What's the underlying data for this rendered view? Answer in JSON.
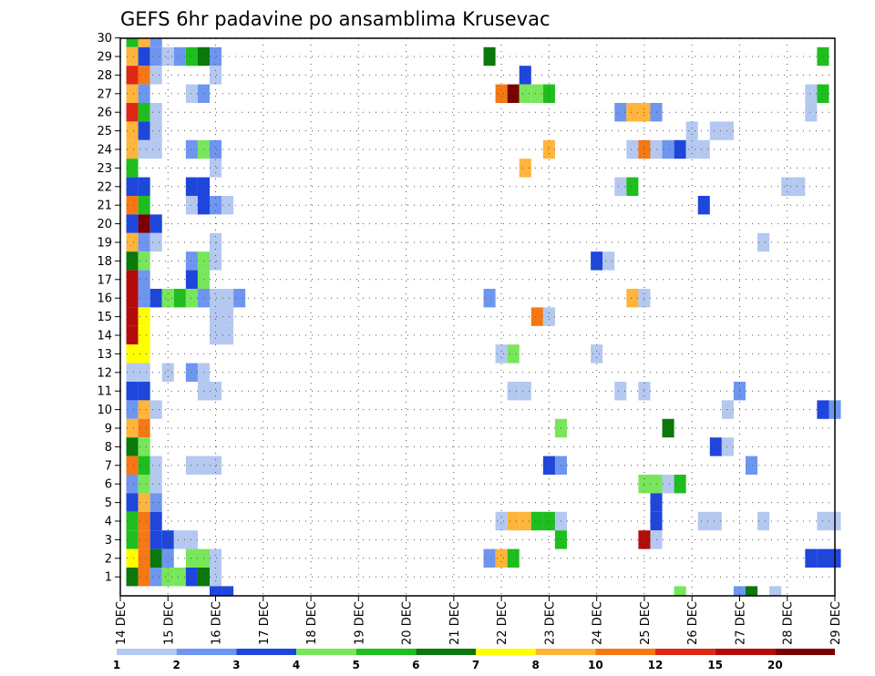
{
  "chart_data": {
    "type": "heatmap",
    "title": "GEFS 6hr padavine po ansamblima Krusevac",
    "xlabel": "",
    "ylabel": "",
    "x_ticks": [
      "14 DEC",
      "15 DEC",
      "16 DEC",
      "17 DEC",
      "18 DEC",
      "19 DEC",
      "20 DEC",
      "21 DEC",
      "22 DEC",
      "23 DEC",
      "24 DEC",
      "25 DEC",
      "26 DEC",
      "27 DEC",
      "28 DEC",
      "29 DEC"
    ],
    "y_ticks": [
      "1",
      "2",
      "3",
      "4",
      "5",
      "6",
      "7",
      "8",
      "9",
      "10",
      "11",
      "12",
      "13",
      "14",
      "15",
      "16",
      "17",
      "18",
      "19",
      "20",
      "21",
      "22",
      "23",
      "24",
      "25",
      "26",
      "27",
      "28",
      "29",
      "30"
    ],
    "xlim": [
      0,
      60
    ],
    "ylim": [
      0,
      30
    ],
    "x_unit": "6-hour step from 14 DEC 00Z",
    "grid": true,
    "legend": {
      "placement": "bottom",
      "colors": [
        "#b4c8f0",
        "#6e96f0",
        "#1e46dc",
        "#78e65a",
        "#1ebe1e",
        "#0a780a",
        "#ffff00",
        "#ffb43c",
        "#f57814",
        "#dc2814",
        "#b40a0a",
        "#780000"
      ],
      "labels": [
        "1",
        "2",
        "3",
        "4",
        "5",
        "6",
        "7",
        "8",
        "10",
        "12",
        "15",
        "20"
      ]
    },
    "cells": [
      {
        "x": 1,
        "y": 29,
        "v": 5
      },
      {
        "x": 2,
        "y": 29,
        "v": 8
      },
      {
        "x": 3,
        "y": 29,
        "v": 2
      },
      {
        "x": 1,
        "y": 28,
        "v": 8
      },
      {
        "x": 2,
        "y": 28,
        "v": 3
      },
      {
        "x": 3,
        "y": 28,
        "v": 2
      },
      {
        "x": 4,
        "y": 28,
        "v": 1
      },
      {
        "x": 5,
        "y": 28,
        "v": 2
      },
      {
        "x": 6,
        "y": 28,
        "v": 5
      },
      {
        "x": 7,
        "y": 28,
        "v": 6
      },
      {
        "x": 8,
        "y": 28,
        "v": 2
      },
      {
        "x": 31,
        "y": 28,
        "v": 6
      },
      {
        "x": 59,
        "y": 28,
        "v": 5
      },
      {
        "x": 1,
        "y": 27,
        "v": 12
      },
      {
        "x": 2,
        "y": 27,
        "v": 10
      },
      {
        "x": 3,
        "y": 27,
        "v": 1
      },
      {
        "x": 8,
        "y": 27,
        "v": 1
      },
      {
        "x": 34,
        "y": 27,
        "v": 3
      },
      {
        "x": 1,
        "y": 26,
        "v": 8
      },
      {
        "x": 2,
        "y": 26,
        "v": 2
      },
      {
        "x": 6,
        "y": 26,
        "v": 1
      },
      {
        "x": 7,
        "y": 26,
        "v": 2
      },
      {
        "x": 32,
        "y": 26,
        "v": 10
      },
      {
        "x": 33,
        "y": 26,
        "v": 20
      },
      {
        "x": 34,
        "y": 26,
        "v": 4
      },
      {
        "x": 35,
        "y": 26,
        "v": 4
      },
      {
        "x": 36,
        "y": 26,
        "v": 5
      },
      {
        "x": 59,
        "y": 26,
        "v": 5
      },
      {
        "x": 58,
        "y": 26,
        "v": 1
      },
      {
        "x": 1,
        "y": 25,
        "v": 12
      },
      {
        "x": 2,
        "y": 25,
        "v": 5
      },
      {
        "x": 3,
        "y": 25,
        "v": 1
      },
      {
        "x": 42,
        "y": 25,
        "v": 2
      },
      {
        "x": 43,
        "y": 25,
        "v": 8
      },
      {
        "x": 44,
        "y": 25,
        "v": 8
      },
      {
        "x": 45,
        "y": 25,
        "v": 2
      },
      {
        "x": 58,
        "y": 25,
        "v": 1
      },
      {
        "x": 1,
        "y": 24,
        "v": 8
      },
      {
        "x": 2,
        "y": 24,
        "v": 3
      },
      {
        "x": 3,
        "y": 24,
        "v": 1
      },
      {
        "x": 48,
        "y": 24,
        "v": 1
      },
      {
        "x": 50,
        "y": 24,
        "v": 1
      },
      {
        "x": 51,
        "y": 24,
        "v": 1
      },
      {
        "x": 1,
        "y": 23,
        "v": 8
      },
      {
        "x": 2,
        "y": 23,
        "v": 1
      },
      {
        "x": 3,
        "y": 23,
        "v": 1
      },
      {
        "x": 6,
        "y": 23,
        "v": 2
      },
      {
        "x": 7,
        "y": 23,
        "v": 4
      },
      {
        "x": 8,
        "y": 23,
        "v": 2
      },
      {
        "x": 36,
        "y": 23,
        "v": 8
      },
      {
        "x": 43,
        "y": 23,
        "v": 1
      },
      {
        "x": 44,
        "y": 23,
        "v": 10
      },
      {
        "x": 45,
        "y": 23,
        "v": 1
      },
      {
        "x": 46,
        "y": 23,
        "v": 2
      },
      {
        "x": 47,
        "y": 23,
        "v": 3
      },
      {
        "x": 48,
        "y": 23,
        "v": 1
      },
      {
        "x": 49,
        "y": 23,
        "v": 1
      },
      {
        "x": 1,
        "y": 22,
        "v": 5
      },
      {
        "x": 8,
        "y": 22,
        "v": 1
      },
      {
        "x": 34,
        "y": 22,
        "v": 8
      },
      {
        "x": 1,
        "y": 21,
        "v": 3
      },
      {
        "x": 2,
        "y": 21,
        "v": 3
      },
      {
        "x": 6,
        "y": 21,
        "v": 3
      },
      {
        "x": 7,
        "y": 21,
        "v": 3
      },
      {
        "x": 42,
        "y": 21,
        "v": 1
      },
      {
        "x": 43,
        "y": 21,
        "v": 5
      },
      {
        "x": 56,
        "y": 21,
        "v": 1
      },
      {
        "x": 57,
        "y": 21,
        "v": 1
      },
      {
        "x": 1,
        "y": 20,
        "v": 10
      },
      {
        "x": 2,
        "y": 20,
        "v": 5
      },
      {
        "x": 6,
        "y": 20,
        "v": 1
      },
      {
        "x": 7,
        "y": 20,
        "v": 3
      },
      {
        "x": 8,
        "y": 20,
        "v": 2
      },
      {
        "x": 9,
        "y": 20,
        "v": 1
      },
      {
        "x": 49,
        "y": 20,
        "v": 3
      },
      {
        "x": 1,
        "y": 19,
        "v": 3
      },
      {
        "x": 2,
        "y": 19,
        "v": 20
      },
      {
        "x": 3,
        "y": 19,
        "v": 3
      },
      {
        "x": 1,
        "y": 18,
        "v": 8
      },
      {
        "x": 2,
        "y": 18,
        "v": 2
      },
      {
        "x": 3,
        "y": 18,
        "v": 1
      },
      {
        "x": 8,
        "y": 18,
        "v": 1
      },
      {
        "x": 54,
        "y": 18,
        "v": 1
      },
      {
        "x": 1,
        "y": 17,
        "v": 6
      },
      {
        "x": 2,
        "y": 17,
        "v": 4
      },
      {
        "x": 6,
        "y": 17,
        "v": 2
      },
      {
        "x": 7,
        "y": 17,
        "v": 4
      },
      {
        "x": 8,
        "y": 17,
        "v": 1
      },
      {
        "x": 40,
        "y": 17,
        "v": 3
      },
      {
        "x": 41,
        "y": 17,
        "v": 1
      },
      {
        "x": 1,
        "y": 16,
        "v": 15
      },
      {
        "x": 2,
        "y": 16,
        "v": 2
      },
      {
        "x": 6,
        "y": 16,
        "v": 3
      },
      {
        "x": 7,
        "y": 16,
        "v": 4
      },
      {
        "x": 1,
        "y": 15,
        "v": 15
      },
      {
        "x": 2,
        "y": 15,
        "v": 2
      },
      {
        "x": 3,
        "y": 15,
        "v": 3
      },
      {
        "x": 4,
        "y": 15,
        "v": 4
      },
      {
        "x": 5,
        "y": 15,
        "v": 5
      },
      {
        "x": 6,
        "y": 15,
        "v": 4
      },
      {
        "x": 7,
        "y": 15,
        "v": 2
      },
      {
        "x": 8,
        "y": 15,
        "v": 1
      },
      {
        "x": 9,
        "y": 15,
        "v": 1
      },
      {
        "x": 10,
        "y": 15,
        "v": 2
      },
      {
        "x": 31,
        "y": 15,
        "v": 2
      },
      {
        "x": 43,
        "y": 15,
        "v": 8
      },
      {
        "x": 44,
        "y": 15,
        "v": 1
      },
      {
        "x": 1,
        "y": 14,
        "v": 15
      },
      {
        "x": 2,
        "y": 14,
        "v": 7
      },
      {
        "x": 8,
        "y": 14,
        "v": 1
      },
      {
        "x": 9,
        "y": 14,
        "v": 1
      },
      {
        "x": 35,
        "y": 14,
        "v": 10
      },
      {
        "x": 36,
        "y": 14,
        "v": 1
      },
      {
        "x": 1,
        "y": 13,
        "v": 15
      },
      {
        "x": 2,
        "y": 13,
        "v": 7
      },
      {
        "x": 8,
        "y": 13,
        "v": 1
      },
      {
        "x": 9,
        "y": 13,
        "v": 1
      },
      {
        "x": 1,
        "y": 12,
        "v": 7
      },
      {
        "x": 2,
        "y": 12,
        "v": 7
      },
      {
        "x": 32,
        "y": 12,
        "v": 1
      },
      {
        "x": 33,
        "y": 12,
        "v": 4
      },
      {
        "x": 40,
        "y": 12,
        "v": 1
      },
      {
        "x": 1,
        "y": 11,
        "v": 1
      },
      {
        "x": 2,
        "y": 11,
        "v": 1
      },
      {
        "x": 4,
        "y": 11,
        "v": 1
      },
      {
        "x": 6,
        "y": 11,
        "v": 2
      },
      {
        "x": 7,
        "y": 11,
        "v": 1
      },
      {
        "x": 1,
        "y": 10,
        "v": 3
      },
      {
        "x": 2,
        "y": 10,
        "v": 3
      },
      {
        "x": 7,
        "y": 10,
        "v": 1
      },
      {
        "x": 8,
        "y": 10,
        "v": 1
      },
      {
        "x": 33,
        "y": 10,
        "v": 1
      },
      {
        "x": 34,
        "y": 10,
        "v": 1
      },
      {
        "x": 42,
        "y": 10,
        "v": 1
      },
      {
        "x": 44,
        "y": 10,
        "v": 1
      },
      {
        "x": 52,
        "y": 10,
        "v": 2
      },
      {
        "x": 1,
        "y": 9,
        "v": 2
      },
      {
        "x": 2,
        "y": 9,
        "v": 8
      },
      {
        "x": 3,
        "y": 9,
        "v": 1
      },
      {
        "x": 51,
        "y": 9,
        "v": 1
      },
      {
        "x": 59,
        "y": 9,
        "v": 3
      },
      {
        "x": 60,
        "y": 9,
        "v": 2
      },
      {
        "x": 1,
        "y": 8,
        "v": 8
      },
      {
        "x": 2,
        "y": 8,
        "v": 10
      },
      {
        "x": 37,
        "y": 8,
        "v": 4
      },
      {
        "x": 46,
        "y": 8,
        "v": 6
      },
      {
        "x": 1,
        "y": 7,
        "v": 6
      },
      {
        "x": 2,
        "y": 7,
        "v": 4
      },
      {
        "x": 50,
        "y": 7,
        "v": 3
      },
      {
        "x": 51,
        "y": 7,
        "v": 1
      },
      {
        "x": 1,
        "y": 6,
        "v": 10
      },
      {
        "x": 2,
        "y": 6,
        "v": 5
      },
      {
        "x": 3,
        "y": 6,
        "v": 1
      },
      {
        "x": 6,
        "y": 6,
        "v": 1
      },
      {
        "x": 7,
        "y": 6,
        "v": 1
      },
      {
        "x": 8,
        "y": 6,
        "v": 1
      },
      {
        "x": 36,
        "y": 6,
        "v": 3
      },
      {
        "x": 37,
        "y": 6,
        "v": 2
      },
      {
        "x": 53,
        "y": 6,
        "v": 2
      },
      {
        "x": 1,
        "y": 5,
        "v": 2
      },
      {
        "x": 2,
        "y": 5,
        "v": 4
      },
      {
        "x": 3,
        "y": 5,
        "v": 1
      },
      {
        "x": 44,
        "y": 5,
        "v": 4
      },
      {
        "x": 45,
        "y": 5,
        "v": 4
      },
      {
        "x": 46,
        "y": 5,
        "v": 1
      },
      {
        "x": 47,
        "y": 5,
        "v": 5
      },
      {
        "x": 1,
        "y": 4,
        "v": 3
      },
      {
        "x": 2,
        "y": 4,
        "v": 8
      },
      {
        "x": 3,
        "y": 4,
        "v": 2
      },
      {
        "x": 45,
        "y": 4,
        "v": 3
      },
      {
        "x": 1,
        "y": 3,
        "v": 5
      },
      {
        "x": 2,
        "y": 3,
        "v": 10
      },
      {
        "x": 3,
        "y": 3,
        "v": 3
      },
      {
        "x": 32,
        "y": 3,
        "v": 1
      },
      {
        "x": 33,
        "y": 3,
        "v": 8
      },
      {
        "x": 34,
        "y": 3,
        "v": 8
      },
      {
        "x": 35,
        "y": 3,
        "v": 5
      },
      {
        "x": 36,
        "y": 3,
        "v": 5
      },
      {
        "x": 37,
        "y": 3,
        "v": 1
      },
      {
        "x": 45,
        "y": 3,
        "v": 3
      },
      {
        "x": 49,
        "y": 3,
        "v": 1
      },
      {
        "x": 50,
        "y": 3,
        "v": 1
      },
      {
        "x": 54,
        "y": 3,
        "v": 1
      },
      {
        "x": 59,
        "y": 3,
        "v": 1
      },
      {
        "x": 60,
        "y": 3,
        "v": 1
      },
      {
        "x": 1,
        "y": 2,
        "v": 5
      },
      {
        "x": 2,
        "y": 2,
        "v": 10
      },
      {
        "x": 3,
        "y": 2,
        "v": 3
      },
      {
        "x": 4,
        "y": 2,
        "v": 3
      },
      {
        "x": 5,
        "y": 2,
        "v": 1
      },
      {
        "x": 6,
        "y": 2,
        "v": 1
      },
      {
        "x": 37,
        "y": 2,
        "v": 5
      },
      {
        "x": 44,
        "y": 2,
        "v": 15
      },
      {
        "x": 45,
        "y": 2,
        "v": 1
      },
      {
        "x": 1,
        "y": 1,
        "v": 7
      },
      {
        "x": 2,
        "y": 1,
        "v": 10
      },
      {
        "x": 3,
        "y": 1,
        "v": 6
      },
      {
        "x": 4,
        "y": 1,
        "v": 2
      },
      {
        "x": 6,
        "y": 1,
        "v": 4
      },
      {
        "x": 7,
        "y": 1,
        "v": 4
      },
      {
        "x": 8,
        "y": 1,
        "v": 1
      },
      {
        "x": 31,
        "y": 1,
        "v": 2
      },
      {
        "x": 32,
        "y": 1,
        "v": 8
      },
      {
        "x": 33,
        "y": 1,
        "v": 5
      },
      {
        "x": 58,
        "y": 1,
        "v": 3
      },
      {
        "x": 59,
        "y": 1,
        "v": 3
      },
      {
        "x": 60,
        "y": 1,
        "v": 3
      },
      {
        "x": 1,
        "y": 0,
        "v": 6
      },
      {
        "x": 2,
        "y": 0,
        "v": 10
      },
      {
        "x": 3,
        "y": 0,
        "v": 2
      },
      {
        "x": 4,
        "y": 0,
        "v": 4
      },
      {
        "x": 5,
        "y": 0,
        "v": 4
      },
      {
        "x": 6,
        "y": 0,
        "v": 3
      },
      {
        "x": 7,
        "y": 0,
        "v": 6
      },
      {
        "x": 8,
        "y": 0,
        "v": 1
      },
      {
        "x": 8,
        "y": -1,
        "v": 3
      },
      {
        "x": 9,
        "y": -1,
        "v": 3
      },
      {
        "x": 47,
        "y": -1,
        "v": 4
      },
      {
        "x": 52,
        "y": -1,
        "v": 2
      },
      {
        "x": 53,
        "y": -1,
        "v": 6
      },
      {
        "x": 55,
        "y": -1,
        "v": 1
      }
    ]
  }
}
